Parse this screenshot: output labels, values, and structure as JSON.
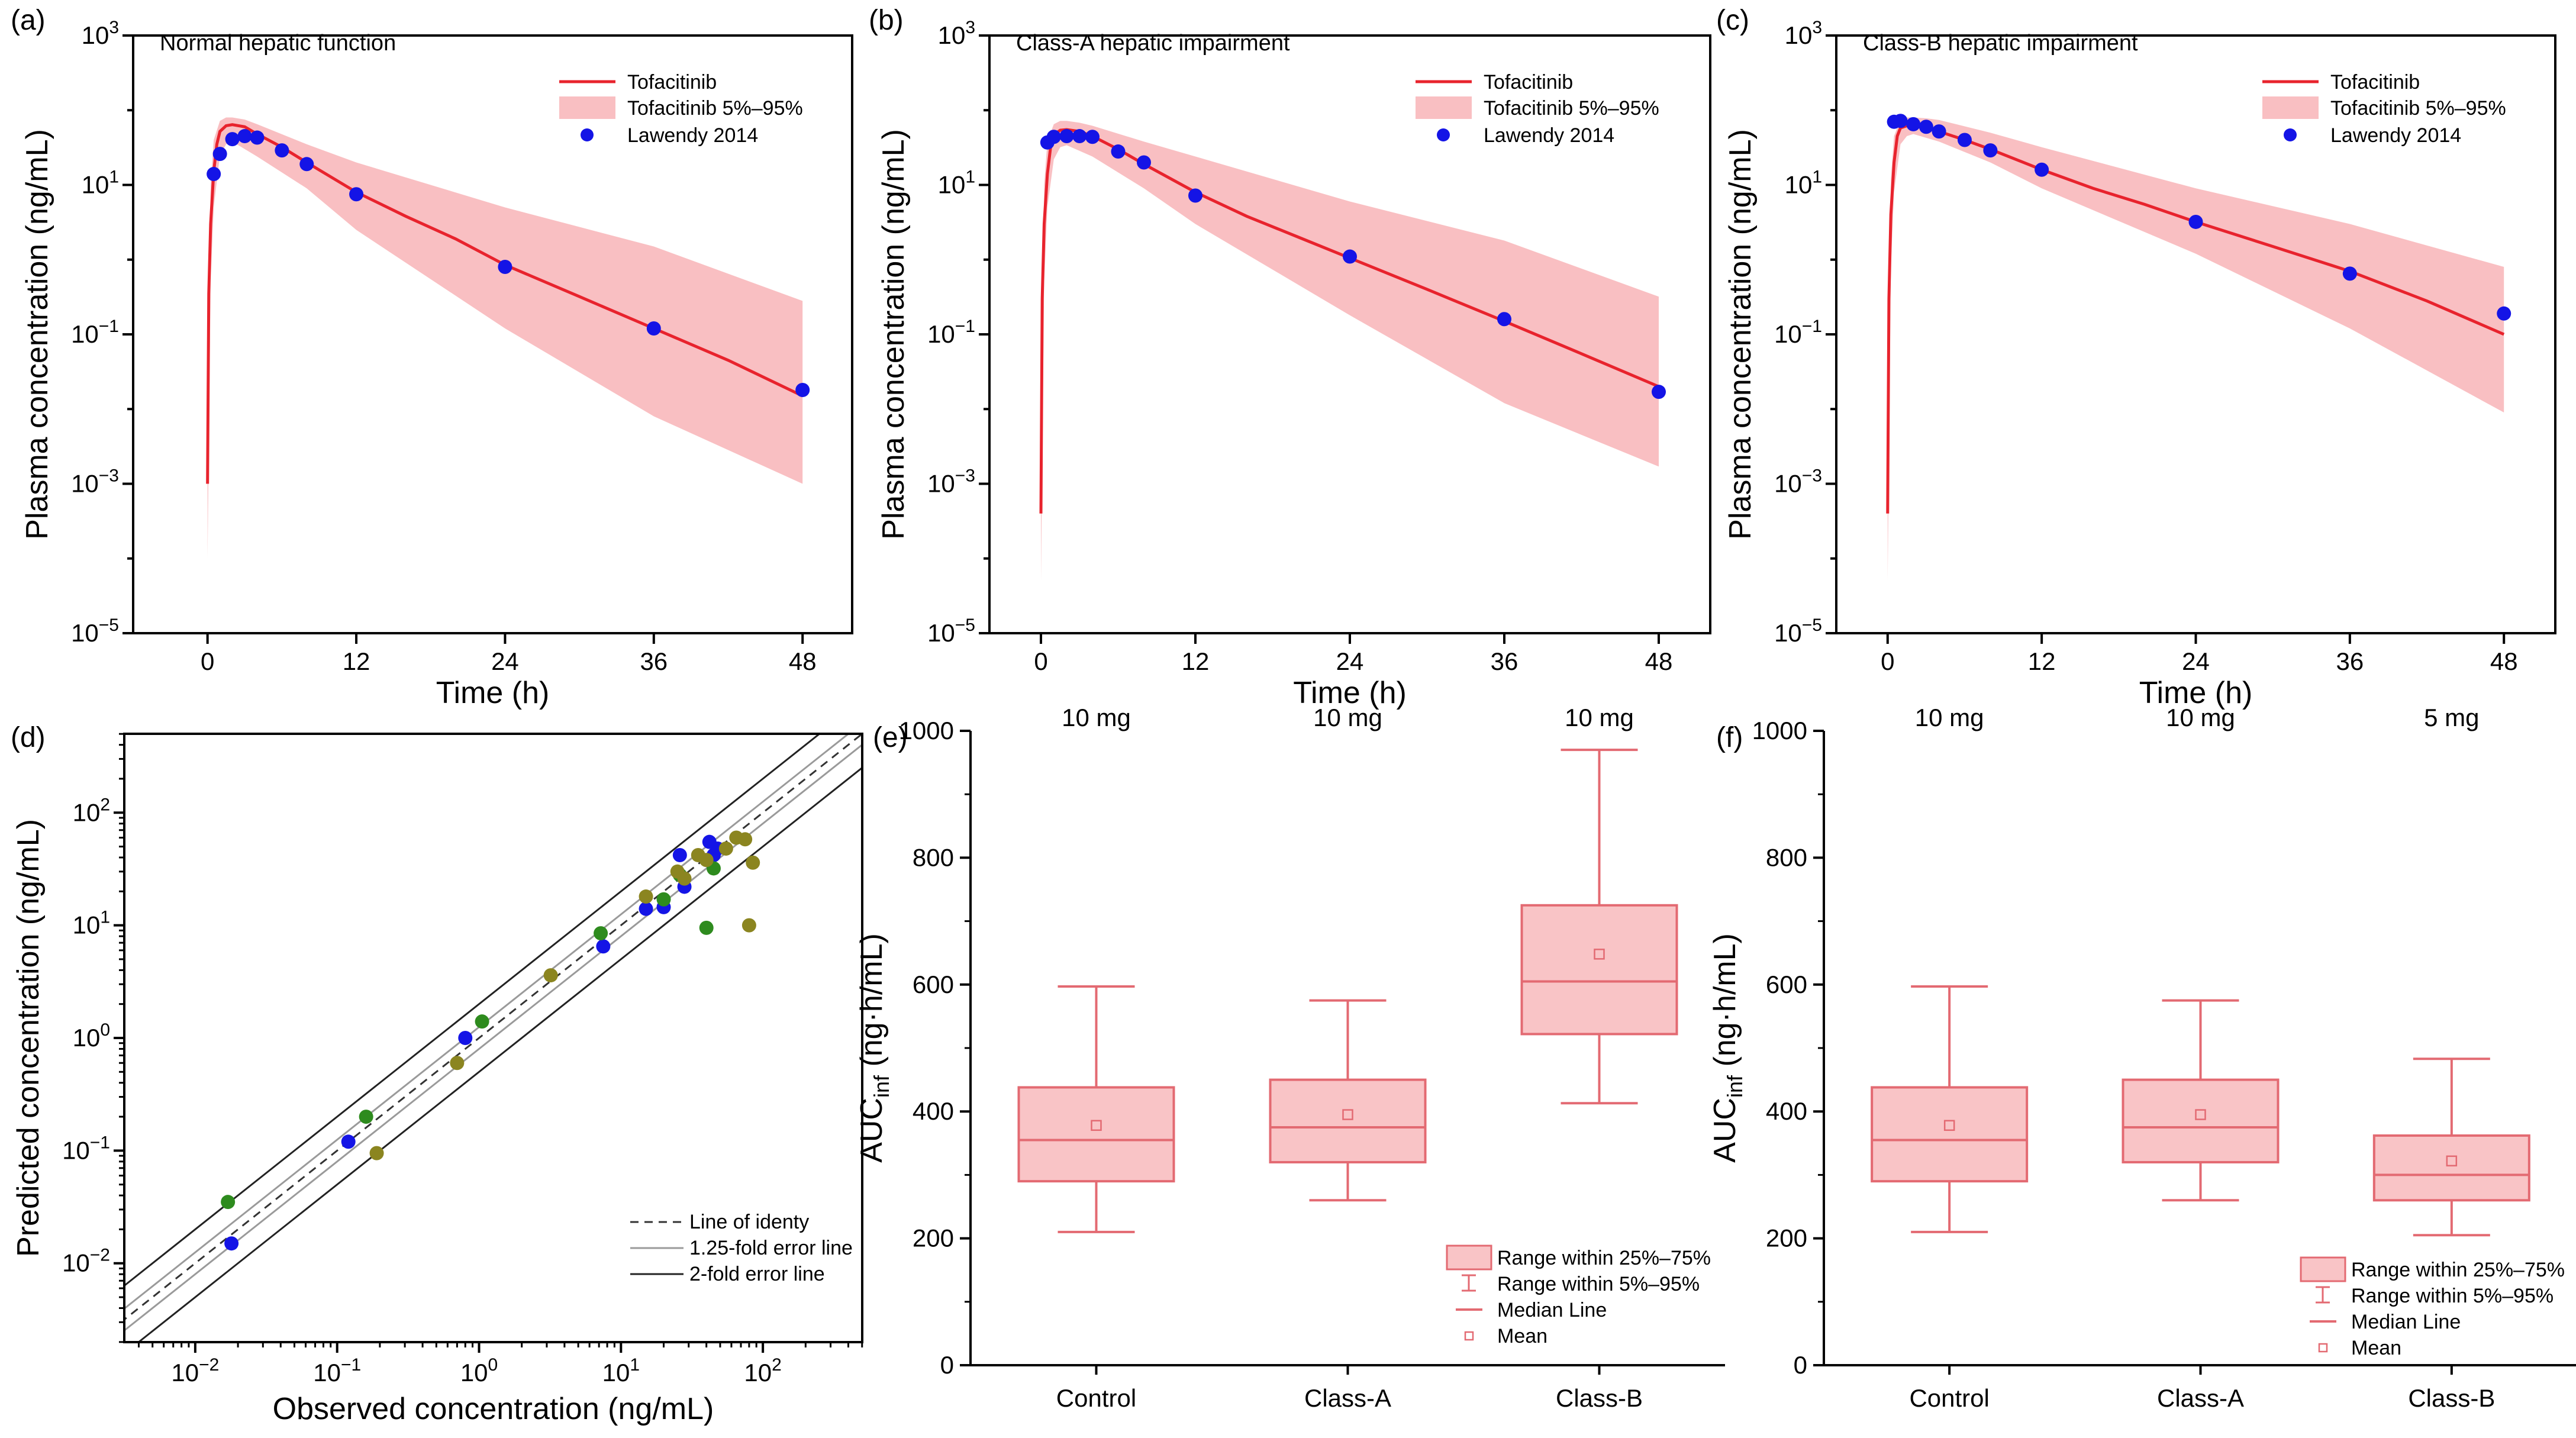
{
  "figure": {
    "colors": {
      "sim_line": "#e8232d",
      "band": "#f9bfc2",
      "observed": "#1414e6",
      "box_fill": "#f9c4c6",
      "box_stroke": "#e36a72",
      "dose_green": "#2e8b1e",
      "dose_olive": "#8b8520"
    }
  },
  "chart_data": [
    {
      "panel": "(a)",
      "type": "line",
      "title": "Normal hepatic function",
      "xlabel": "Time (h)",
      "ylabel": "Plasma concentration (ng/mL)",
      "xlim": [
        -6,
        52
      ],
      "ylim_log10": [
        -5,
        3
      ],
      "xticks": [
        0,
        12,
        24,
        36,
        48
      ],
      "yticks_exp": [
        -5,
        -3,
        -1,
        1,
        3
      ],
      "legend": [
        "Tofacitinib",
        "Tofacitinib 5%–95%",
        "Lawendy 2014"
      ],
      "series": [
        {
          "name": "Tofacitinib",
          "x": [
            0,
            0.1,
            0.25,
            0.5,
            0.75,
            1,
            1.5,
            2,
            3,
            4,
            6,
            8,
            12,
            16,
            20,
            24,
            30,
            36,
            42,
            48
          ],
          "y": [
            0.001,
            0.35,
            3,
            15,
            35,
            52,
            62,
            64,
            60,
            48,
            32,
            20,
            8,
            3.8,
            1.9,
            0.85,
            0.32,
            0.12,
            0.045,
            0.015
          ]
        },
        {
          "name": "Tofacitinib 5%–95% lower",
          "x": [
            0,
            0.25,
            0.5,
            1,
            1.5,
            2,
            4,
            8,
            12,
            24,
            36,
            48
          ],
          "y": [
            0.0001,
            0.5,
            5,
            25,
            35,
            38,
            24,
            9,
            2.5,
            0.12,
            0.008,
            0.001
          ]
        },
        {
          "name": "Tofacitinib 5%–95% upper",
          "x": [
            0,
            0.25,
            0.5,
            1,
            1.5,
            2,
            3,
            4,
            8,
            12,
            24,
            36,
            48
          ],
          "y": [
            0.003,
            10,
            40,
            72,
            80,
            80,
            75,
            65,
            35,
            20,
            5,
            1.5,
            0.28
          ]
        },
        {
          "name": "Lawendy 2014",
          "x": [
            0.5,
            1,
            2,
            3,
            4,
            6,
            8,
            12,
            24,
            36,
            48
          ],
          "y": [
            14,
            26,
            41,
            45,
            43,
            29,
            19,
            7.5,
            0.8,
            0.12,
            0.018
          ]
        }
      ]
    },
    {
      "panel": "(b)",
      "type": "line",
      "title": "Class-A hepatic impairment",
      "xlabel": "Time (h)",
      "ylabel": "Plasma concentration (ng/mL)",
      "xlim": [
        -4,
        52
      ],
      "ylim_log10": [
        -5,
        3
      ],
      "xticks": [
        0,
        12,
        24,
        36,
        48
      ],
      "yticks_exp": [
        -5,
        -3,
        -1,
        1,
        3
      ],
      "legend": [
        "Tofacitinib",
        "Tofacitinib 5%–95%",
        "Lawendy 2014"
      ],
      "series": [
        {
          "name": "Tofacitinib",
          "x": [
            0,
            0.1,
            0.25,
            0.5,
            0.75,
            1,
            1.5,
            2,
            3,
            4,
            6,
            8,
            12,
            16,
            20,
            24,
            30,
            36,
            42,
            48
          ],
          "y": [
            0.0004,
            0.3,
            3,
            14,
            32,
            47,
            54,
            55,
            52,
            45,
            30,
            19,
            8,
            3.8,
            2,
            1.05,
            0.4,
            0.15,
            0.055,
            0.02
          ]
        },
        {
          "name": "Tofacitinib 5%–95% lower",
          "x": [
            0,
            0.25,
            0.5,
            1,
            1.5,
            2,
            4,
            8,
            12,
            24,
            36,
            48
          ],
          "y": [
            5e-05,
            0.5,
            5,
            22,
            32,
            34,
            24,
            9,
            3,
            0.18,
            0.012,
            0.0017
          ]
        },
        {
          "name": "Tofacitinib 5%–95% upper",
          "x": [
            0,
            0.25,
            0.5,
            1,
            1.5,
            2,
            3,
            4,
            8,
            12,
            24,
            36,
            48
          ],
          "y": [
            0.002,
            10,
            38,
            65,
            72,
            72,
            68,
            62,
            38,
            24,
            6,
            1.8,
            0.32
          ]
        },
        {
          "name": "Lawendy 2014",
          "x": [
            0.5,
            1,
            2,
            3,
            4,
            6,
            8,
            12,
            24,
            36,
            48
          ],
          "y": [
            37,
            44,
            45,
            45,
            44,
            28,
            20,
            7.2,
            1.1,
            0.16,
            0.017
          ]
        }
      ]
    },
    {
      "panel": "(c)",
      "type": "line",
      "title": "Class-B hepatic impairment",
      "xlabel": "Time (h)",
      "ylabel": "Plasma concentration (ng/mL)",
      "xlim": [
        -4,
        52
      ],
      "ylim_log10": [
        -5,
        3
      ],
      "xticks": [
        0,
        12,
        24,
        36,
        48
      ],
      "yticks_exp": [
        -5,
        -3,
        -1,
        1,
        3
      ],
      "legend": [
        "Tofacitinib",
        "Tofacitinib 5%–95%",
        "Lawendy 2014"
      ],
      "series": [
        {
          "name": "Tofacitinib",
          "x": [
            0,
            0.1,
            0.25,
            0.5,
            0.75,
            1,
            1.5,
            2,
            3,
            4,
            6,
            8,
            12,
            16,
            20,
            24,
            30,
            36,
            42,
            48
          ],
          "y": [
            0.0004,
            0.3,
            4,
            20,
            45,
            58,
            62,
            62,
            58,
            52,
            40,
            30,
            16,
            9,
            5.5,
            3.2,
            1.5,
            0.7,
            0.28,
            0.1
          ]
        },
        {
          "name": "Tofacitinib 5%–95% lower",
          "x": [
            0,
            0.25,
            0.5,
            1,
            1.5,
            2,
            4,
            8,
            12,
            24,
            36,
            48
          ],
          "y": [
            5e-05,
            0.8,
            8,
            35,
            45,
            48,
            38,
            20,
            9,
            1.2,
            0.12,
            0.009
          ]
        },
        {
          "name": "Tofacitinib 5%–95% upper",
          "x": [
            0,
            0.25,
            0.5,
            1,
            1.5,
            2,
            3,
            4,
            8,
            12,
            24,
            36,
            48
          ],
          "y": [
            0.002,
            12,
            45,
            75,
            80,
            80,
            78,
            74,
            50,
            32,
            9,
            3,
            0.8
          ]
        },
        {
          "name": "Lawendy 2014",
          "x": [
            0.5,
            1,
            2,
            3,
            4,
            6,
            8,
            12,
            24,
            36,
            48
          ],
          "y": [
            70,
            72,
            65,
            60,
            52,
            40,
            29,
            16,
            3.2,
            0.65,
            0.19
          ]
        }
      ]
    },
    {
      "panel": "(d)",
      "type": "scatter",
      "xlabel": "Observed concentration (ng/mL)",
      "ylabel": "Predicted concentration (ng/mL)",
      "xlim_log10": [
        -2.5,
        2.7
      ],
      "ylim_log10": [
        -2.7,
        2.7
      ],
      "xticks_exp": [
        -2,
        -1,
        0,
        1,
        2
      ],
      "yticks_exp": [
        -2,
        -1,
        0,
        1,
        2
      ],
      "legend": [
        "Line of identy",
        "1.25-fold error line",
        "2-fold error line"
      ],
      "series": [
        {
          "name": "Normal",
          "color": "#1414e6",
          "x": [
            0.018,
            0.12,
            0.8,
            7.5,
            15,
            20,
            26,
            28,
            42,
            45,
            48
          ],
          "y": [
            0.015,
            0.12,
            1.0,
            6.5,
            14,
            14.5,
            42,
            22,
            55,
            42,
            48
          ]
        },
        {
          "name": "Class-A",
          "color": "#2e8b1e",
          "x": [
            0.017,
            0.16,
            1.05,
            7.2,
            20,
            26,
            40,
            45
          ],
          "y": [
            0.035,
            0.2,
            1.4,
            8.5,
            17,
            28,
            9.5,
            32
          ]
        },
        {
          "name": "Class-B",
          "color": "#8b8520",
          "x": [
            0.19,
            0.7,
            3.2,
            15,
            25,
            28,
            35,
            40,
            55,
            65,
            75,
            80,
            85
          ],
          "y": [
            0.095,
            0.6,
            3.6,
            18,
            30,
            26,
            42,
            38,
            48,
            60,
            58,
            10,
            36
          ]
        }
      ]
    },
    {
      "panel": "(e)",
      "type": "box",
      "ylabel": "AUC",
      "ylabel_sub": "inf",
      "ylabel_units": " (ng·h/mL)",
      "ylim": [
        0,
        1000
      ],
      "yticks": [
        0,
        200,
        400,
        600,
        800,
        1000
      ],
      "categories": [
        "Control",
        "Class-A",
        "Class-B"
      ],
      "doses": [
        "10 mg",
        "10 mg",
        "10 mg"
      ],
      "boxes": [
        {
          "p5": 210,
          "q1": 290,
          "median": 355,
          "mean": 378,
          "q3": 438,
          "p95": 597
        },
        {
          "p5": 260,
          "q1": 320,
          "median": 375,
          "mean": 395,
          "q3": 450,
          "p95": 575
        },
        {
          "p5": 413,
          "q1": 522,
          "median": 605,
          "mean": 648,
          "q3": 725,
          "p95": 970
        }
      ],
      "legend": [
        "Range within 25%–75%",
        "Range within 5%–95%",
        "Median Line",
        "Mean"
      ]
    },
    {
      "panel": "(f)",
      "type": "box",
      "ylabel": "AUC",
      "ylabel_sub": "inf",
      "ylabel_units": " (ng·h/mL)",
      "ylim": [
        0,
        1000
      ],
      "yticks": [
        0,
        200,
        400,
        600,
        800,
        1000
      ],
      "categories": [
        "Control",
        "Class-A",
        "Class-B"
      ],
      "doses": [
        "10 mg",
        "10 mg",
        "5 mg"
      ],
      "boxes": [
        {
          "p5": 210,
          "q1": 290,
          "median": 355,
          "mean": 378,
          "q3": 438,
          "p95": 597
        },
        {
          "p5": 260,
          "q1": 320,
          "median": 375,
          "mean": 395,
          "q3": 450,
          "p95": 575
        },
        {
          "p5": 205,
          "q1": 260,
          "median": 300,
          "mean": 322,
          "q3": 362,
          "p95": 483
        }
      ],
      "legend": [
        "Range within 25%–75%",
        "Range within 5%–95%",
        "Median Line",
        "Mean"
      ]
    }
  ]
}
